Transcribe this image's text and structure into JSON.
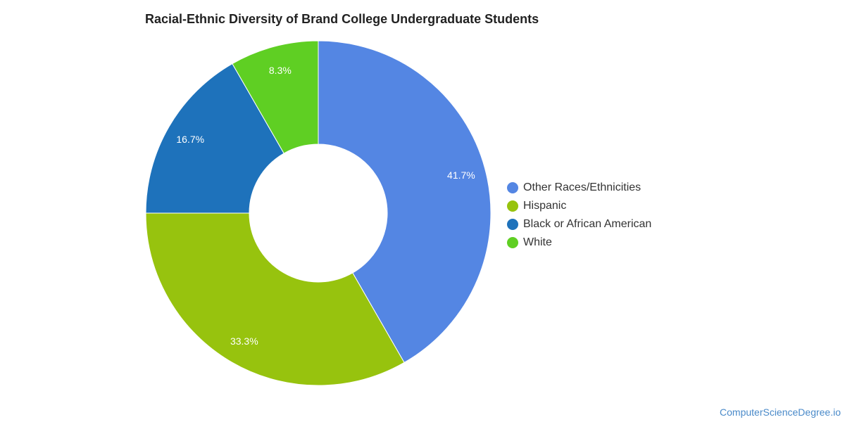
{
  "chart_data": {
    "type": "pie",
    "donut": true,
    "title": "Racial-Ethnic Diversity of Brand College Undergraduate Students",
    "slices": [
      {
        "label": "Other Races/Ethnicities",
        "value": 41.7,
        "display": "41.7%",
        "color": "#5486e3"
      },
      {
        "label": "Hispanic",
        "value": 33.3,
        "display": "33.3%",
        "color": "#97c30e"
      },
      {
        "label": "Black or African American",
        "value": 16.7,
        "display": "16.7%",
        "color": "#1e72bb"
      },
      {
        "label": "White",
        "value": 8.3,
        "display": "8.3%",
        "color": "#5fcf23"
      }
    ],
    "legend_placement": "right"
  },
  "source": "ComputerScienceDegree.io"
}
